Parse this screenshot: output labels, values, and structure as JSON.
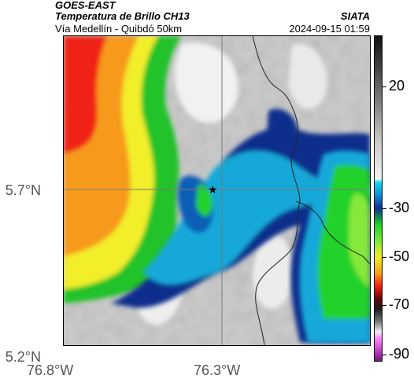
{
  "header": {
    "satellite": "GOES-EAST",
    "product": "Temperatura de Brillo CH13",
    "region": "Vía Medellín - Quibdó 50km",
    "agency": "SIATA",
    "datetime": "2024-09-15 01:59"
  },
  "map": {
    "lat_labels": [
      "5.7°N",
      "5.2°N"
    ],
    "lon_labels": [
      "76.8°W",
      "76.3°W"
    ],
    "marker_icon": "star-marker-icon",
    "colors": {
      "cold_blue": "#0a2f8c",
      "cyan": "#19a8d8",
      "green": "#22d12a",
      "yellow": "#f2ee2a",
      "orange": "#f79a1a",
      "red": "#f02012",
      "gray": "#c7c7c7",
      "white": "#f4f4f4"
    }
  },
  "colorbar": {
    "labels": [
      "20",
      "-30",
      "-50",
      "-70",
      "-90"
    ]
  }
}
